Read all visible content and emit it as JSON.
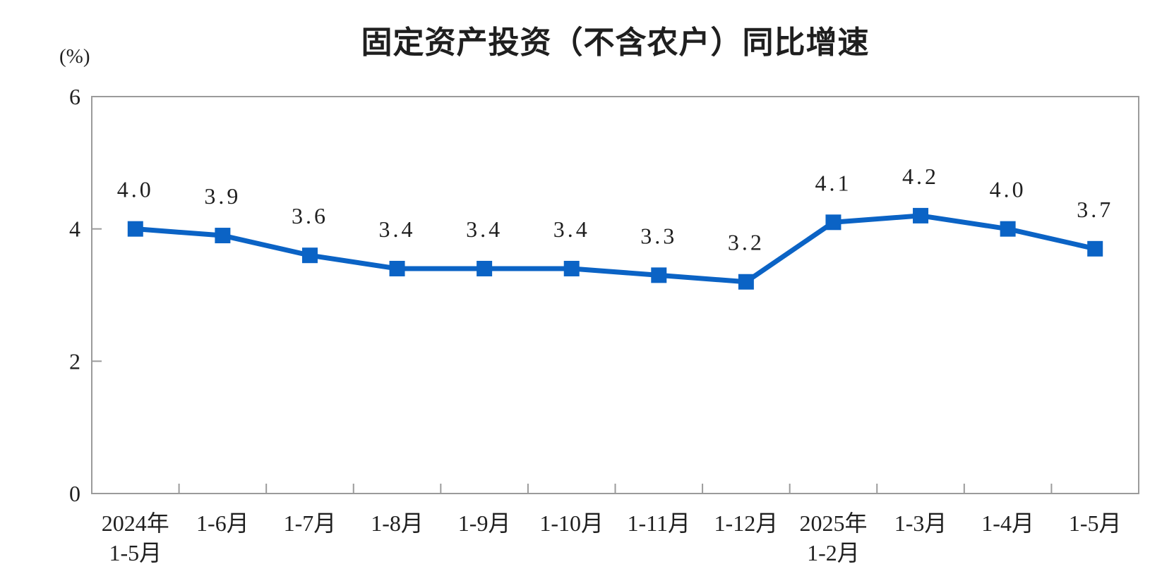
{
  "chart_data": {
    "type": "line",
    "title": "固定资产投资（不含农户）同比增速",
    "ylabel": "(%)",
    "xlabel": "",
    "categories": [
      "2024年\n1-5月",
      "1-6月",
      "1-7月",
      "1-8月",
      "1-9月",
      "1-10月",
      "1-11月",
      "1-12月",
      "2025年\n1-2月",
      "1-3月",
      "1-4月",
      "1-5月"
    ],
    "series": [
      {
        "name": "固定资产投资（不含农户）同比增速",
        "values": [
          4.0,
          3.9,
          3.6,
          3.4,
          3.4,
          3.4,
          3.3,
          3.2,
          4.1,
          4.2,
          4.0,
          3.7
        ]
      }
    ],
    "data_labels": [
      "4.0",
      "3.9",
      "3.6",
      "3.4",
      "3.4",
      "3.4",
      "3.3",
      "3.2",
      "4.1",
      "4.2",
      "4.0",
      "3.7"
    ],
    "ylim": [
      0,
      6
    ],
    "yticks": [
      0,
      2,
      4,
      6
    ],
    "grid": false,
    "legend": "none",
    "marker": "square",
    "line_color": "#0B63C5",
    "axis_color": "#9B9B9B",
    "text_color": "#1F1F1F"
  }
}
